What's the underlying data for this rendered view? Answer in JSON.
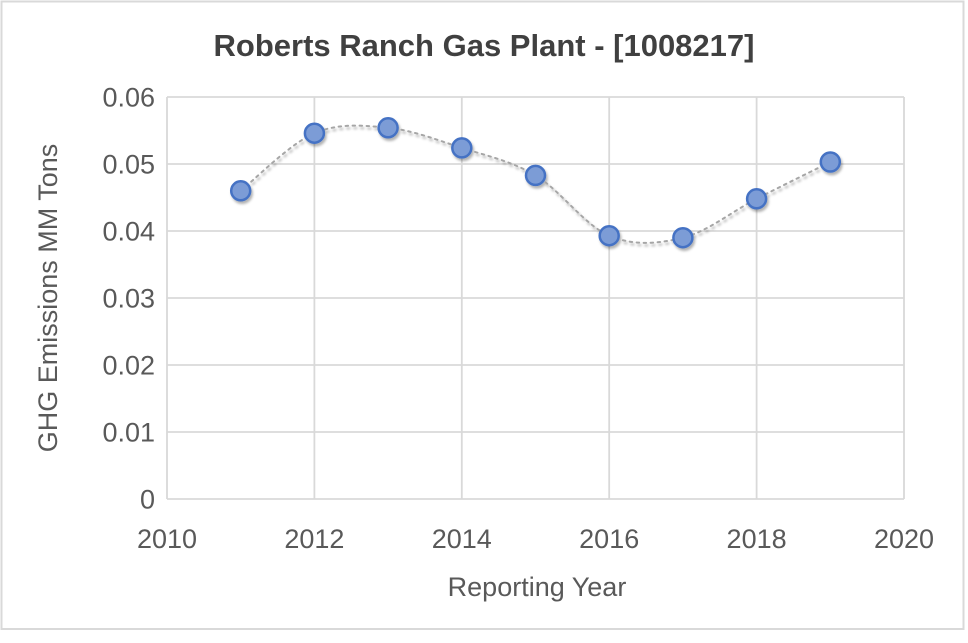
{
  "chart": {
    "title": "Roberts Ranch Gas Plant - [1008217]",
    "x_axis_title": "Reporting Year",
    "y_axis_title": "GHG Emissions MM Tons"
  },
  "chart_data": {
    "type": "scatter",
    "title": "Roberts Ranch Gas Plant - [1008217]",
    "xlabel": "Reporting Year",
    "ylabel": "GHG Emissions MM Tons",
    "x": [
      2011,
      2012,
      2013,
      2014,
      2015,
      2016,
      2017,
      2018,
      2019
    ],
    "y": [
      0.046,
      0.0546,
      0.0554,
      0.0524,
      0.0483,
      0.0393,
      0.039,
      0.0448,
      0.0503
    ],
    "series_name": "GHG Emissions",
    "xlim": [
      2010,
      2020
    ],
    "ylim": [
      0,
      0.06
    ],
    "x_ticks": [
      2010,
      2012,
      2014,
      2016,
      2018,
      2020
    ],
    "x_tick_labels": [
      "2010",
      "2012",
      "2014",
      "2016",
      "2018",
      "2020"
    ],
    "y_ticks": [
      0,
      0.01,
      0.02,
      0.03,
      0.04,
      0.05,
      0.06
    ],
    "y_tick_labels": [
      "0",
      "0.01",
      "0.02",
      "0.03",
      "0.04",
      "0.05",
      "0.06"
    ],
    "grid": true,
    "legend": "none",
    "line_style": "dotted-smooth",
    "marker": "circle",
    "colors": {
      "marker_fill": "#7C9CD6",
      "marker_border": "#4472C4",
      "line": "#A6A6A6",
      "grid": "#D9D9D9",
      "border": "#D9D9D9",
      "tick_text": "#595959",
      "title_text": "#404040",
      "background": "#FFFFFF"
    }
  }
}
